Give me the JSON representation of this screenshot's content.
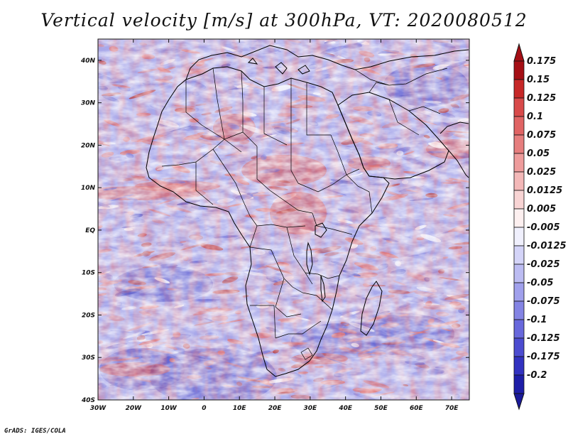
{
  "title": "Vertical velocity [m/s] at 300hPa, VT: 2020080512",
  "credit": "GrADS: IGES/COLA",
  "map": {
    "lon_labels": [
      "30W",
      "20W",
      "10W",
      "0",
      "10E",
      "20E",
      "30E",
      "40E",
      "50E",
      "60E",
      "70E"
    ],
    "lat_labels": [
      "40N",
      "30N",
      "20N",
      "10N",
      "EQ",
      "10S",
      "20S",
      "30S",
      "40S"
    ],
    "lon_range": [
      -30,
      75
    ],
    "lat_range": [
      -40,
      45
    ]
  },
  "colorbar": {
    "labels": [
      "0.175",
      "0.15",
      "0.125",
      "0.1",
      "0.075",
      "0.05",
      "0.025",
      "0.0125",
      "0.005",
      "-0.005",
      "-0.0125",
      "-0.025",
      "-0.05",
      "-0.075",
      "-0.1",
      "-0.125",
      "-0.175",
      "-0.2"
    ],
    "colors": [
      "#a50f15",
      "#c62828",
      "#d84a4a",
      "#e06464",
      "#e67e7e",
      "#ee9c9c",
      "#f3b8b8",
      "#f8d4d4",
      "#fdf0f0",
      "#f0f0fd",
      "#d4d4f8",
      "#bcbcf2",
      "#a0a0ec",
      "#8484e4",
      "#6868dc",
      "#4c4cd0",
      "#3232c0",
      "#1e1ea8"
    ],
    "top_color": "#a50f15",
    "bottom_color": "#1a1a9a"
  },
  "palette": {
    "frame": "#111111",
    "coast": "#000000",
    "base_blue": "#9a9ae6",
    "base_red": "#e89a9a"
  }
}
